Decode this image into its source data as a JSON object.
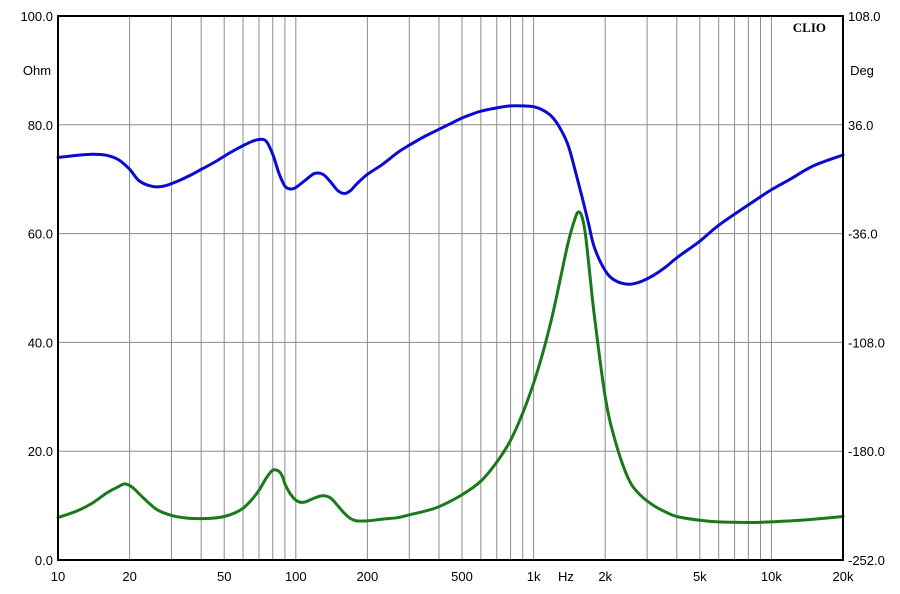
{
  "chart_data": {
    "type": "line",
    "brand": "CLIO",
    "x_unit_label": "Hz",
    "y_left_unit_label": "Ohm",
    "y_right_unit_label": "Deg",
    "x_scale": "log",
    "xlim": [
      10,
      20000
    ],
    "ylim_left": [
      0,
      100
    ],
    "ylim_right": [
      -252,
      108
    ],
    "grid": true,
    "x_ticks": [
      {
        "value": 10,
        "label": "10"
      },
      {
        "value": 20,
        "label": "20"
      },
      {
        "value": 50,
        "label": "50"
      },
      {
        "value": 100,
        "label": "100"
      },
      {
        "value": 200,
        "label": "200"
      },
      {
        "value": 500,
        "label": "500"
      },
      {
        "value": 1000,
        "label": "1k"
      },
      {
        "value": 2000,
        "label": "2k"
      },
      {
        "value": 5000,
        "label": "5k"
      },
      {
        "value": 10000,
        "label": "10k"
      },
      {
        "value": 20000,
        "label": "20k"
      }
    ],
    "y_left_ticks": [
      {
        "value": 0,
        "label": "0.0"
      },
      {
        "value": 20,
        "label": "20.0"
      },
      {
        "value": 40,
        "label": "40.0"
      },
      {
        "value": 60,
        "label": "60.0"
      },
      {
        "value": 80,
        "label": "80.0"
      },
      {
        "value": 100,
        "label": "100.0"
      }
    ],
    "y_right_ticks": [
      {
        "value": -252,
        "label": "-252.0"
      },
      {
        "value": -180,
        "label": "-180.0"
      },
      {
        "value": -108,
        "label": "-108.0"
      },
      {
        "value": -36,
        "label": "-36.0"
      },
      {
        "value": 36,
        "label": "36.0"
      },
      {
        "value": 108,
        "label": "108.0"
      }
    ],
    "series": [
      {
        "axis": "right",
        "color": "#0a0ad2",
        "x": [
          10,
          12,
          14,
          16,
          18,
          20,
          22,
          25,
          28,
          32,
          36,
          40,
          45,
          50,
          55,
          60,
          65,
          70,
          75,
          80,
          85,
          90,
          95,
          100,
          110,
          120,
          130,
          140,
          150,
          160,
          170,
          180,
          200,
          230,
          270,
          300,
          350,
          400,
          450,
          500,
          550,
          600,
          700,
          800,
          900,
          1000,
          1100,
          1200,
          1300,
          1400,
          1500,
          1600,
          1700,
          1800,
          2000,
          2200,
          2500,
          2800,
          3200,
          3600,
          4000,
          5000,
          6000,
          8000,
          10000,
          12000,
          15000,
          20000
        ],
        "y": [
          14.4,
          15.8,
          16.5,
          15.8,
          12.8,
          6.6,
          -1.2,
          -4.8,
          -4.5,
          -1.2,
          2.6,
          6.5,
          10.8,
          15.2,
          19.0,
          22.2,
          24.8,
          26.3,
          25.2,
          16.5,
          3.8,
          -4.6,
          -6.5,
          -5.5,
          -0.5,
          3.8,
          3.2,
          -1.8,
          -7.5,
          -9.5,
          -7.5,
          -3.3,
          3.2,
          9.5,
          18.0,
          22.5,
          28.5,
          33.0,
          37.0,
          40.5,
          43.0,
          45.0,
          47.2,
          48.5,
          48.5,
          48.0,
          45.5,
          41.0,
          33.0,
          22.0,
          5.0,
          -12.0,
          -29.0,
          -45.0,
          -60.5,
          -67.0,
          -69.5,
          -68.0,
          -63.5,
          -58.0,
          -52.0,
          -41.0,
          -30.5,
          -17.0,
          -7.0,
          0.0,
          8.8,
          16.0
        ]
      },
      {
        "axis": "left",
        "color": "#1a7a1a",
        "x": [
          10,
          12,
          14,
          16,
          18,
          19,
          20,
          21,
          23,
          26,
          30,
          35,
          40,
          45,
          50,
          55,
          60,
          65,
          70,
          75,
          80,
          85,
          88,
          90,
          95,
          100,
          105,
          110,
          120,
          130,
          140,
          150,
          160,
          170,
          180,
          200,
          230,
          270,
          300,
          350,
          400,
          500,
          600,
          700,
          800,
          900,
          1000,
          1100,
          1200,
          1300,
          1400,
          1500,
          1550,
          1600,
          1650,
          1700,
          1800,
          2000,
          2200,
          2500,
          2800,
          3200,
          3600,
          4000,
          5000,
          6000,
          8000,
          10000,
          12000,
          15000,
          20000
        ],
        "y": [
          7.8,
          9.0,
          10.5,
          12.3,
          13.5,
          14.0,
          13.7,
          13.0,
          11.3,
          9.3,
          8.2,
          7.7,
          7.6,
          7.7,
          8.0,
          8.6,
          9.5,
          11.0,
          12.8,
          15.0,
          16.5,
          16.3,
          15.3,
          14.0,
          12.1,
          11.0,
          10.6,
          10.7,
          11.4,
          11.8,
          11.4,
          10.0,
          8.6,
          7.6,
          7.2,
          7.2,
          7.5,
          7.8,
          8.3,
          9.0,
          9.8,
          12.0,
          14.5,
          18.0,
          22.0,
          27.0,
          32.5,
          38.5,
          45.0,
          52.0,
          58.5,
          63.0,
          64.0,
          63.0,
          60.0,
          55.0,
          45.0,
          30.0,
          22.0,
          15.0,
          12.0,
          10.0,
          8.8,
          8.0,
          7.3,
          7.0,
          6.9,
          7.0,
          7.2,
          7.5,
          8.0
        ]
      }
    ]
  }
}
